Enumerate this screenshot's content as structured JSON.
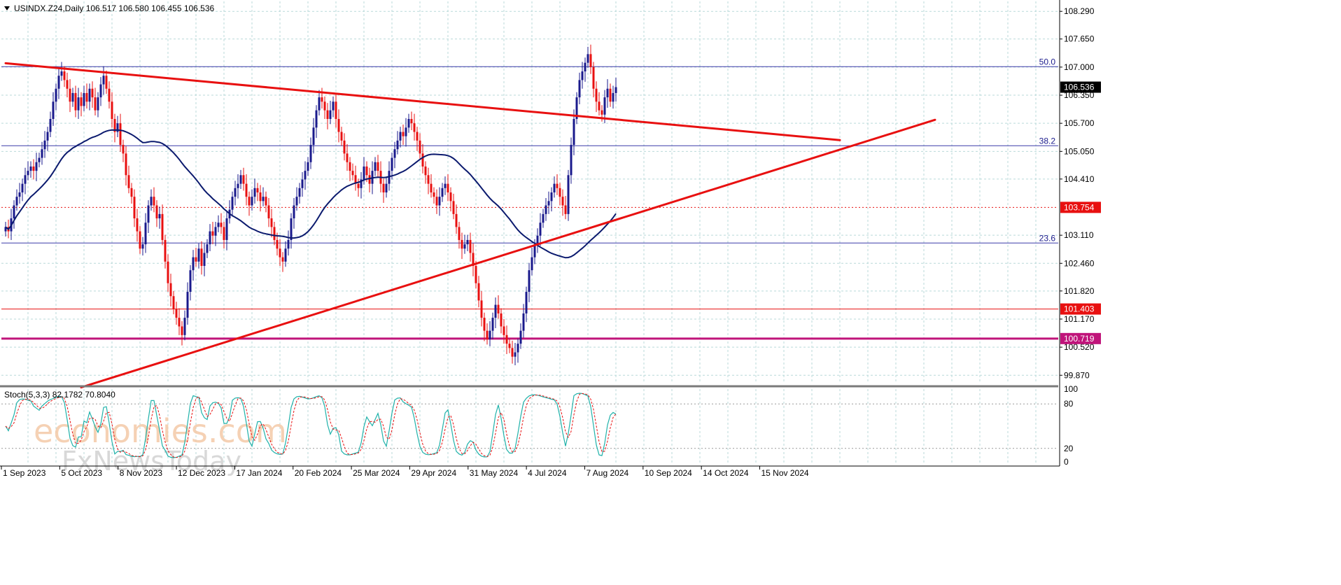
{
  "header": {
    "symbol_line": "USINDX.Z24,Daily  106.517 106.580 106.455 106.536"
  },
  "watermark": {
    "brand": "economies.com",
    "sub": "FxNewsToday"
  },
  "colors": {
    "bull_candle": "#1a1a8c",
    "bear_candle": "#e81010",
    "ma_line": "#0b1a6e",
    "trend_line": "#e81010",
    "fib_line": "#3a3aa8",
    "grid": "#b9d9d9",
    "tag_current": "#000000",
    "tag_red": "#e81010",
    "tag_magenta": "#c0147a",
    "stoch_main": "#20b2aa",
    "stoch_signal": "#e81010"
  },
  "chart_data": {
    "type": "candlestick",
    "price_axis_ticks": [
      "108.290",
      "107.650",
      "107.000",
      "106.350",
      "105.700",
      "105.050",
      "104.410",
      "103.110",
      "102.460",
      "101.820",
      "101.170",
      "100.520",
      "99.870"
    ],
    "price_range": [
      99.68,
      108.52
    ],
    "time_axis_labels": [
      "1 Sep 2023",
      "5 Oct 2023",
      "8 Nov 2023",
      "12 Dec 2023",
      "17 Jan 2024",
      "20 Feb 2024",
      "25 Mar 2024",
      "29 Apr 2024",
      "31 May 2024",
      "4 Jul 2024",
      "7 Aug 2024",
      "10 Sep 2024",
      "14 Oct 2024",
      "15 Nov 2024"
    ],
    "last_price": "106.536",
    "price_tags": [
      {
        "label": "106.536",
        "value": 106.536,
        "kind": "current"
      },
      {
        "label": "103.754",
        "value": 103.754,
        "kind": "red"
      },
      {
        "label": "101.403",
        "value": 101.403,
        "kind": "red"
      },
      {
        "label": "100.719",
        "value": 100.719,
        "kind": "magenta"
      }
    ],
    "fib_levels": [
      {
        "label": "50.0",
        "value": 107.01
      },
      {
        "label": "38.2",
        "value": 105.18
      },
      {
        "label": "23.6",
        "value": 102.93
      }
    ],
    "horizontal_lines": [
      {
        "value": 103.754,
        "style": "dotted",
        "color": "red"
      },
      {
        "value": 101.403,
        "style": "solid",
        "color": "red"
      },
      {
        "value": 100.719,
        "style": "thick",
        "color": "magenta"
      }
    ],
    "trend_lines": [
      {
        "from": [
          0,
          107.09
        ],
        "to": [
          298,
          105.31
        ],
        "name": ""
      },
      {
        "from": [
          27,
          99.59
        ],
        "to": [
          332,
          105.78
        ],
        "name": ""
      }
    ],
    "closes": [
      103.3,
      103.2,
      103.5,
      103.8,
      104.0,
      104.1,
      104.3,
      104.5,
      104.6,
      104.7,
      104.6,
      104.8,
      104.9,
      105.1,
      105.3,
      105.5,
      105.8,
      106.2,
      106.5,
      106.8,
      106.9,
      106.7,
      106.5,
      106.2,
      106.4,
      106.0,
      106.3,
      106.1,
      106.4,
      106.2,
      106.5,
      106.3,
      106.0,
      106.3,
      106.6,
      106.8,
      106.5,
      106.2,
      105.8,
      105.5,
      105.7,
      105.2,
      105.0,
      104.5,
      104.2,
      104.0,
      103.5,
      103.2,
      102.8,
      102.9,
      103.4,
      103.8,
      104.0,
      103.8,
      103.5,
      103.6,
      103.0,
      102.5,
      102.0,
      101.7,
      101.4,
      101.2,
      101.0,
      100.8,
      101.2,
      101.8,
      102.3,
      102.6,
      102.5,
      102.8,
      102.4,
      102.7,
      102.9,
      103.2,
      103.1,
      103.3,
      103.4,
      103.3,
      103.0,
      103.5,
      103.7,
      104.0,
      104.2,
      104.3,
      104.5,
      104.3,
      104.0,
      103.8,
      104.0,
      104.2,
      104.1,
      103.9,
      104.0,
      103.8,
      103.5,
      103.3,
      103.0,
      102.8,
      102.6,
      102.5,
      102.8,
      103.0,
      103.5,
      103.8,
      104.0,
      104.2,
      104.4,
      104.6,
      104.8,
      105.2,
      105.6,
      106.0,
      106.3,
      106.2,
      106.0,
      105.8,
      106.0,
      106.2,
      105.8,
      105.5,
      105.3,
      105.0,
      104.8,
      104.6,
      104.5,
      104.3,
      104.2,
      104.4,
      104.7,
      104.5,
      104.3,
      104.6,
      104.8,
      104.6,
      104.3,
      104.1,
      104.3,
      104.6,
      104.9,
      105.1,
      105.3,
      105.5,
      105.4,
      105.6,
      105.8,
      105.7,
      105.5,
      105.3,
      105.0,
      104.7,
      104.5,
      104.3,
      104.1,
      104.0,
      103.8,
      104.0,
      104.2,
      104.3,
      104.1,
      103.9,
      103.6,
      103.3,
      103.0,
      102.8,
      102.9,
      103.0,
      102.7,
      102.4,
      102.0,
      101.6,
      101.2,
      100.9,
      100.7,
      100.9,
      101.2,
      101.5,
      101.3,
      101.0,
      100.8,
      100.6,
      100.5,
      100.3,
      100.4,
      100.6,
      100.9,
      101.3,
      101.8,
      102.3,
      102.6,
      102.9,
      103.1,
      103.4,
      103.6,
      103.8,
      103.9,
      104.1,
      104.3,
      104.2,
      104.0,
      103.8,
      103.6,
      104.5,
      105.2,
      105.8,
      106.3,
      106.7,
      106.9,
      107.1,
      107.3,
      107.0,
      106.5,
      106.2,
      106.0,
      105.9,
      106.3,
      106.5,
      106.2,
      106.4,
      106.536
    ],
    "ma_period": 50,
    "stochastic": {
      "label": "Stoch(5,3,3) 82.1782 70.8040",
      "k": 82.1782,
      "d": 70.804,
      "scale_ticks": [
        "100",
        "80",
        "20",
        "0"
      ],
      "levels": [
        80,
        20
      ]
    }
  }
}
